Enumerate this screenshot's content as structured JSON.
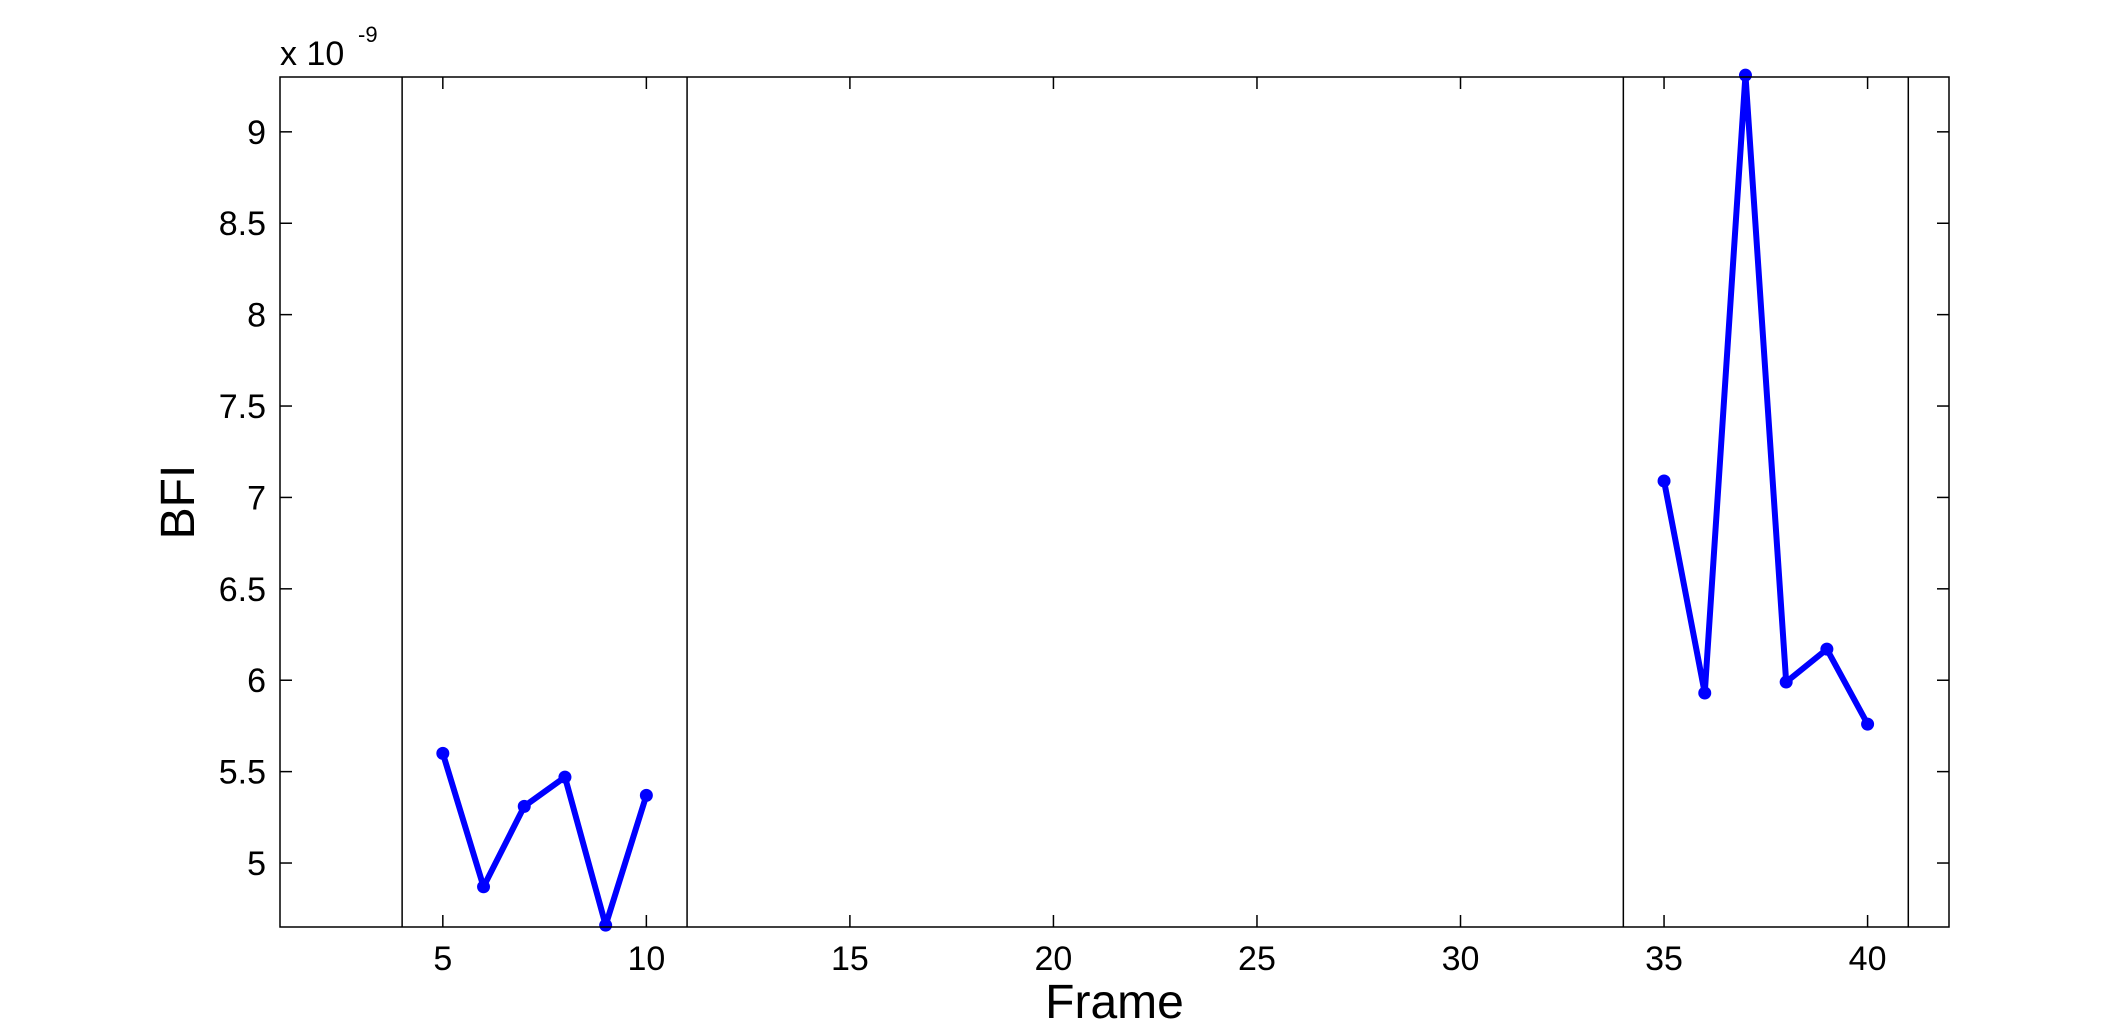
{
  "chart_data": {
    "type": "line",
    "title": "",
    "xlabel": "Frame",
    "ylabel": "BFI",
    "y_multiplier": {
      "base": "x 10",
      "exponent": "-9"
    },
    "xlim": [
      1,
      42
    ],
    "ylim": [
      4.65,
      9.3
    ],
    "xticks": [
      5,
      10,
      15,
      20,
      25,
      30,
      35,
      40
    ],
    "yticks": [
      5,
      5.5,
      6,
      6.5,
      7,
      7.5,
      8,
      8.5,
      9
    ],
    "ytick_labels": [
      "5",
      "5.5",
      "6",
      "6.5",
      "7",
      "7.5",
      "8",
      "8.5",
      "9"
    ],
    "vertical_lines": [
      4,
      11,
      34,
      41
    ],
    "grid": false,
    "line_color": "#0000ff",
    "series": [
      {
        "x": [
          5,
          6,
          7,
          8,
          9,
          10
        ],
        "values": [
          5.6,
          4.87,
          5.31,
          5.47,
          4.66,
          5.37
        ]
      },
      {
        "x": [
          35,
          36,
          37,
          38,
          39,
          40
        ],
        "values": [
          7.09,
          5.93,
          9.31,
          5.99,
          6.17,
          5.76
        ]
      }
    ]
  }
}
